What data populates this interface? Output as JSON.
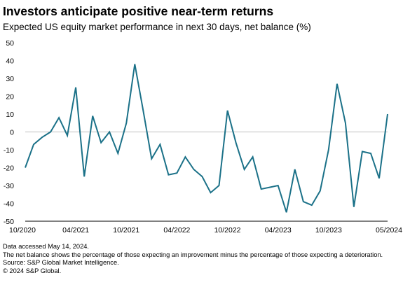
{
  "chart_data": {
    "type": "line",
    "title": "Investors anticipate positive near-term returns",
    "subtitle": "Expected US equity market performance in next 30 days, net balance (%)",
    "xlabel": "",
    "ylabel": "",
    "ylim": [
      -50,
      50
    ],
    "yticks": [
      50,
      40,
      30,
      20,
      10,
      0,
      -10,
      -20,
      -30,
      -40,
      -50
    ],
    "xtick_labels": [
      "10/2020",
      "04/2021",
      "10/2021",
      "04/2022",
      "10/2022",
      "04/2023",
      "10/2023",
      "05/2024"
    ],
    "grid": false,
    "line_color": "#1b7188",
    "zero_line_color": "#bfbfbf",
    "series": [
      {
        "x": [
          "10/2020",
          "11/2020",
          "12/2020",
          "01/2021",
          "02/2021",
          "03/2021",
          "04/2021",
          "05/2021",
          "06/2021",
          "07/2021",
          "08/2021",
          "09/2021",
          "10/2021",
          "11/2021",
          "12/2021",
          "01/2022",
          "02/2022",
          "03/2022",
          "04/2022",
          "05/2022",
          "06/2022",
          "07/2022",
          "08/2022",
          "09/2022",
          "10/2022",
          "11/2022",
          "12/2022",
          "01/2023",
          "02/2023",
          "03/2023",
          "04/2023",
          "05/2023",
          "06/2023",
          "07/2023",
          "08/2023",
          "09/2023",
          "10/2023",
          "11/2023",
          "12/2023",
          "01/2024",
          "02/2024",
          "03/2024",
          "04/2024",
          "05/2024"
        ],
        "values": [
          -20,
          -7,
          -3,
          0,
          8,
          -2,
          25,
          -25,
          9,
          -6,
          0,
          -12,
          5,
          38,
          12,
          -15,
          -7,
          -24,
          -23,
          -14,
          -21,
          -25,
          -34,
          -30,
          12,
          -6,
          -21,
          -14,
          -32,
          -31,
          -30,
          -45,
          -21,
          -39,
          -41,
          -33,
          -10,
          27,
          5,
          -42,
          -11,
          -12,
          -26,
          10
        ]
      }
    ]
  },
  "footer": {
    "line1": "Data accessed May 14, 2024.",
    "line2": "The net balance shows the percentage of those expecting an improvement minus the percentage of those expecting a deterioration.",
    "line3": "Source: S&P Global Market Intelligence.",
    "line4": "© 2024 S&P Global."
  }
}
